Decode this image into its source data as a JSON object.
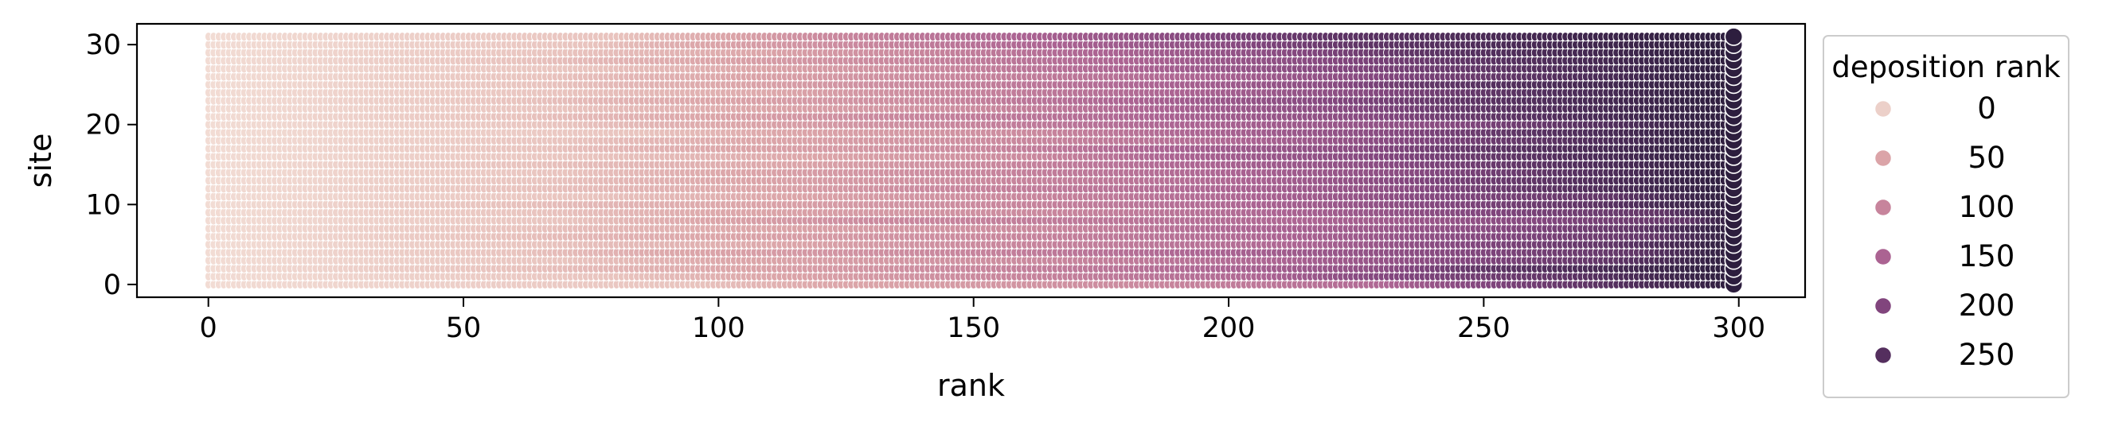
{
  "chart_data": {
    "type": "scatter",
    "title": "",
    "xlabel": "rank",
    "ylabel": "site",
    "xlim": [
      -14,
      313
    ],
    "ylim": [
      -1.6,
      32.6
    ],
    "x_ticks": [
      0,
      50,
      100,
      150,
      200,
      250,
      300
    ],
    "y_ticks": [
      0,
      10,
      20,
      30
    ],
    "grid": false,
    "point_grid": {
      "rank_min": 0,
      "rank_max": 299,
      "site_min": 0,
      "site_max": 31
    },
    "color_encoding": "deposition rank",
    "color_range": [
      0,
      299
    ],
    "legend": {
      "title": "deposition rank",
      "placement": "outside-right",
      "entries": [
        {
          "label": "0",
          "value": 0,
          "color": "#ecd0c9"
        },
        {
          "label": "50",
          "value": 50,
          "color": "#dba4a8"
        },
        {
          "label": "100",
          "value": 100,
          "color": "#c7849c"
        },
        {
          "label": "150",
          "value": 150,
          "color": "#ab6392"
        },
        {
          "label": "200",
          "value": 200,
          "color": "#81457d"
        },
        {
          "label": "250",
          "value": 250,
          "color": "#542f5e"
        }
      ]
    },
    "colormap": [
      "#f2dcd4",
      "#e8c2bd",
      "#dba4a8",
      "#c7849c",
      "#ab6392",
      "#81457d",
      "#542f5e",
      "#2d1e3e"
    ],
    "site_breakpoints": [
      [
        95,
        120,
        180,
        230,
        245,
        270
      ],
      [
        80,
        108,
        150,
        205,
        225,
        265
      ],
      [
        58,
        100,
        145,
        195,
        232,
        250
      ],
      [
        70,
        100,
        160,
        205,
        240,
        275
      ],
      [
        60,
        90,
        140,
        190,
        238,
        280
      ],
      [
        65,
        110,
        150,
        210,
        240,
        275
      ],
      [
        55,
        95,
        150,
        205,
        245,
        285
      ],
      [
        60,
        105,
        160,
        200,
        250,
        280
      ],
      [
        70,
        95,
        130,
        210,
        255,
        290
      ],
      [
        65,
        100,
        160,
        205,
        240,
        285
      ],
      [
        55,
        100,
        150,
        200,
        235,
        270
      ],
      [
        75,
        110,
        155,
        200,
        235,
        275
      ],
      [
        60,
        105,
        140,
        195,
        235,
        260
      ],
      [
        65,
        100,
        150,
        200,
        230,
        260
      ],
      [
        70,
        100,
        145,
        195,
        235,
        262
      ],
      [
        60,
        110,
        150,
        190,
        230,
        258
      ],
      [
        75,
        115,
        160,
        185,
        225,
        255
      ],
      [
        65,
        100,
        150,
        180,
        225,
        250
      ],
      [
        70,
        105,
        155,
        200,
        230,
        260
      ],
      [
        85,
        110,
        160,
        190,
        230,
        255
      ],
      [
        70,
        100,
        140,
        185,
        240,
        265
      ],
      [
        60,
        95,
        130,
        180,
        225,
        252
      ],
      [
        70,
        105,
        150,
        180,
        220,
        248
      ],
      [
        60,
        95,
        140,
        175,
        215,
        245
      ],
      [
        70,
        110,
        140,
        185,
        225,
        250
      ],
      [
        65,
        100,
        135,
        180,
        220,
        240
      ],
      [
        65,
        100,
        140,
        190,
        225,
        255
      ],
      [
        75,
        105,
        140,
        175,
        215,
        250
      ],
      [
        60,
        95,
        130,
        175,
        215,
        245
      ],
      [
        70,
        105,
        135,
        170,
        210,
        235
      ],
      [
        75,
        95,
        125,
        160,
        200,
        225
      ],
      [
        80,
        100,
        120,
        155,
        190,
        218
      ]
    ]
  }
}
